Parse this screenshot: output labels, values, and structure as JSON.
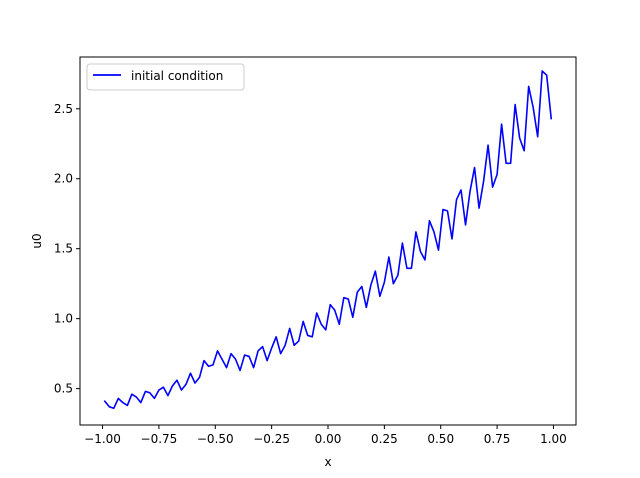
{
  "chart_data": {
    "type": "line",
    "title": "",
    "xlabel": "x",
    "ylabel": "u0",
    "xlim": [
      -1.1,
      1.1
    ],
    "ylim": [
      0.24,
      2.87
    ],
    "xticks": [
      -1.0,
      -0.75,
      -0.5,
      -0.25,
      0.0,
      0.25,
      0.5,
      0.75,
      1.0
    ],
    "xtick_labels": [
      "−1.00",
      "−0.75",
      "−0.50",
      "−0.25",
      "0.00",
      "0.25",
      "0.50",
      "0.75",
      "1.00"
    ],
    "yticks": [
      0.5,
      1.0,
      1.5,
      2.0,
      2.5
    ],
    "ytick_labels": [
      "0.5",
      "1.0",
      "1.5",
      "2.0",
      "2.5"
    ],
    "grid": false,
    "legend_position": "upper-left",
    "series": [
      {
        "name": "initial condition",
        "color": "#0000ff",
        "x": [
          -0.99,
          -0.97,
          -0.95,
          -0.93,
          -0.91,
          -0.89,
          -0.87,
          -0.85,
          -0.83,
          -0.81,
          -0.79,
          -0.77,
          -0.75,
          -0.73,
          -0.71,
          -0.69,
          -0.67,
          -0.65,
          -0.63,
          -0.61,
          -0.59,
          -0.57,
          -0.55,
          -0.53,
          -0.51,
          -0.49,
          -0.47,
          -0.45,
          -0.43,
          -0.41,
          -0.39,
          -0.37,
          -0.35,
          -0.33,
          -0.31,
          -0.29,
          -0.27,
          -0.25,
          -0.23,
          -0.21,
          -0.19,
          -0.17,
          -0.15,
          -0.13,
          -0.11,
          -0.09,
          -0.07,
          -0.05,
          -0.03,
          -0.01,
          0.01,
          0.03,
          0.05,
          0.07,
          0.09,
          0.11,
          0.13,
          0.15,
          0.17,
          0.19,
          0.21,
          0.23,
          0.25,
          0.27,
          0.29,
          0.31,
          0.33,
          0.35,
          0.37,
          0.39,
          0.41,
          0.43,
          0.45,
          0.47,
          0.49,
          0.51,
          0.53,
          0.55,
          0.57,
          0.59,
          0.61,
          0.63,
          0.65,
          0.67,
          0.69,
          0.71,
          0.73,
          0.75,
          0.77,
          0.79,
          0.81,
          0.83,
          0.85,
          0.87,
          0.89,
          0.91,
          0.93,
          0.95,
          0.97,
          0.99
        ],
        "values": [
          0.41,
          0.37,
          0.36,
          0.43,
          0.4,
          0.38,
          0.46,
          0.44,
          0.4,
          0.48,
          0.47,
          0.43,
          0.49,
          0.51,
          0.45,
          0.52,
          0.56,
          0.49,
          0.53,
          0.61,
          0.54,
          0.58,
          0.7,
          0.66,
          0.67,
          0.77,
          0.71,
          0.65,
          0.75,
          0.71,
          0.63,
          0.74,
          0.73,
          0.65,
          0.77,
          0.8,
          0.7,
          0.79,
          0.87,
          0.75,
          0.81,
          0.93,
          0.81,
          0.84,
          0.98,
          0.88,
          0.87,
          1.04,
          0.96,
          0.92,
          1.1,
          1.06,
          0.96,
          1.15,
          1.14,
          1.01,
          1.19,
          1.23,
          1.08,
          1.24,
          1.34,
          1.16,
          1.26,
          1.44,
          1.25,
          1.31,
          1.54,
          1.36,
          1.36,
          1.62,
          1.48,
          1.42,
          1.7,
          1.62,
          1.49,
          1.78,
          1.77,
          1.57,
          1.85,
          1.92,
          1.67,
          1.91,
          2.08,
          1.79,
          1.98,
          2.24,
          1.94,
          2.03,
          2.39,
          2.11,
          2.11,
          2.53,
          2.29,
          2.2,
          2.66,
          2.51,
          2.3,
          2.77,
          2.74,
          2.43
        ]
      }
    ]
  }
}
